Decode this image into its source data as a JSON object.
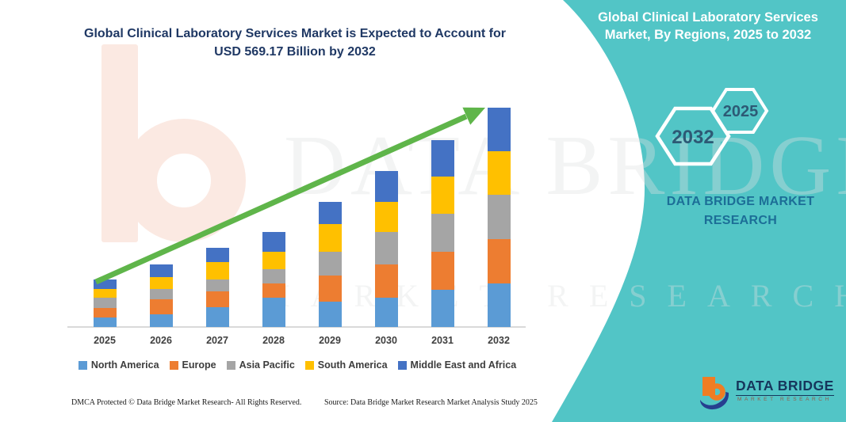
{
  "header": {
    "left_title": "Global Clinical Laboratory Services Market is Expected to Account for USD 569.17 Billion by 2032",
    "right_title": "Global Clinical Laboratory Services Market, By Regions, 2025 to 2032"
  },
  "side_panel": {
    "accent_color": "#52c5c6",
    "hexagon_front_label": "2032",
    "hexagon_back_label": "2025",
    "brand_text": "DATA BRIDGE MARKET RESEARCH"
  },
  "chart_data": {
    "type": "bar",
    "stacked": true,
    "unit": "USD Billion",
    "value_basis": "values estimated from bar heights; stated figure is 2032 total USD 569.17 Billion",
    "categories": [
      "2025",
      "2026",
      "2027",
      "2028",
      "2029",
      "2030",
      "2031",
      "2032"
    ],
    "series": [
      {
        "name": "North America",
        "color": "#5B9BD5",
        "values": [
          25,
          33,
          51,
          76,
          66,
          76,
          97,
          113
        ]
      },
      {
        "name": "Europe",
        "color": "#ED7D31",
        "values": [
          25,
          39,
          41,
          37,
          68,
          86,
          99,
          115
        ]
      },
      {
        "name": "Asia Pacific",
        "color": "#A5A5A5",
        "values": [
          25,
          27,
          31,
          37,
          62,
          84,
          97,
          115
        ]
      },
      {
        "name": "South America",
        "color": "#FFC000",
        "values": [
          23,
          31,
          45,
          45,
          72,
          78,
          98,
          113
        ]
      },
      {
        "name": "Middle East and Africa",
        "color": "#4472C4",
        "values": [
          25,
          33,
          37,
          51,
          57,
          80,
          94,
          113.17
        ]
      }
    ],
    "totals_estimated": [
      123,
      163,
      205,
      246,
      325,
      404,
      485,
      569.17
    ],
    "highlight": {
      "year": "2032",
      "value": "USD 569.17 Billion"
    },
    "legend_position": "bottom",
    "grid": false,
    "trend_arrow_color": "#5fb54a"
  },
  "watermark": {
    "line1": "DATA BRIDGE",
    "line2": "MARKET RESEARCH"
  },
  "footer": {
    "dmca": "DMCA Protected © Data Bridge Market Research-  All Rights Reserved.",
    "source": "Source: Data Bridge Market Research  Market Analysis Study 2025"
  },
  "logo": {
    "title": "DATA BRIDGE",
    "subtitle": "MARKET RESEARCH"
  }
}
